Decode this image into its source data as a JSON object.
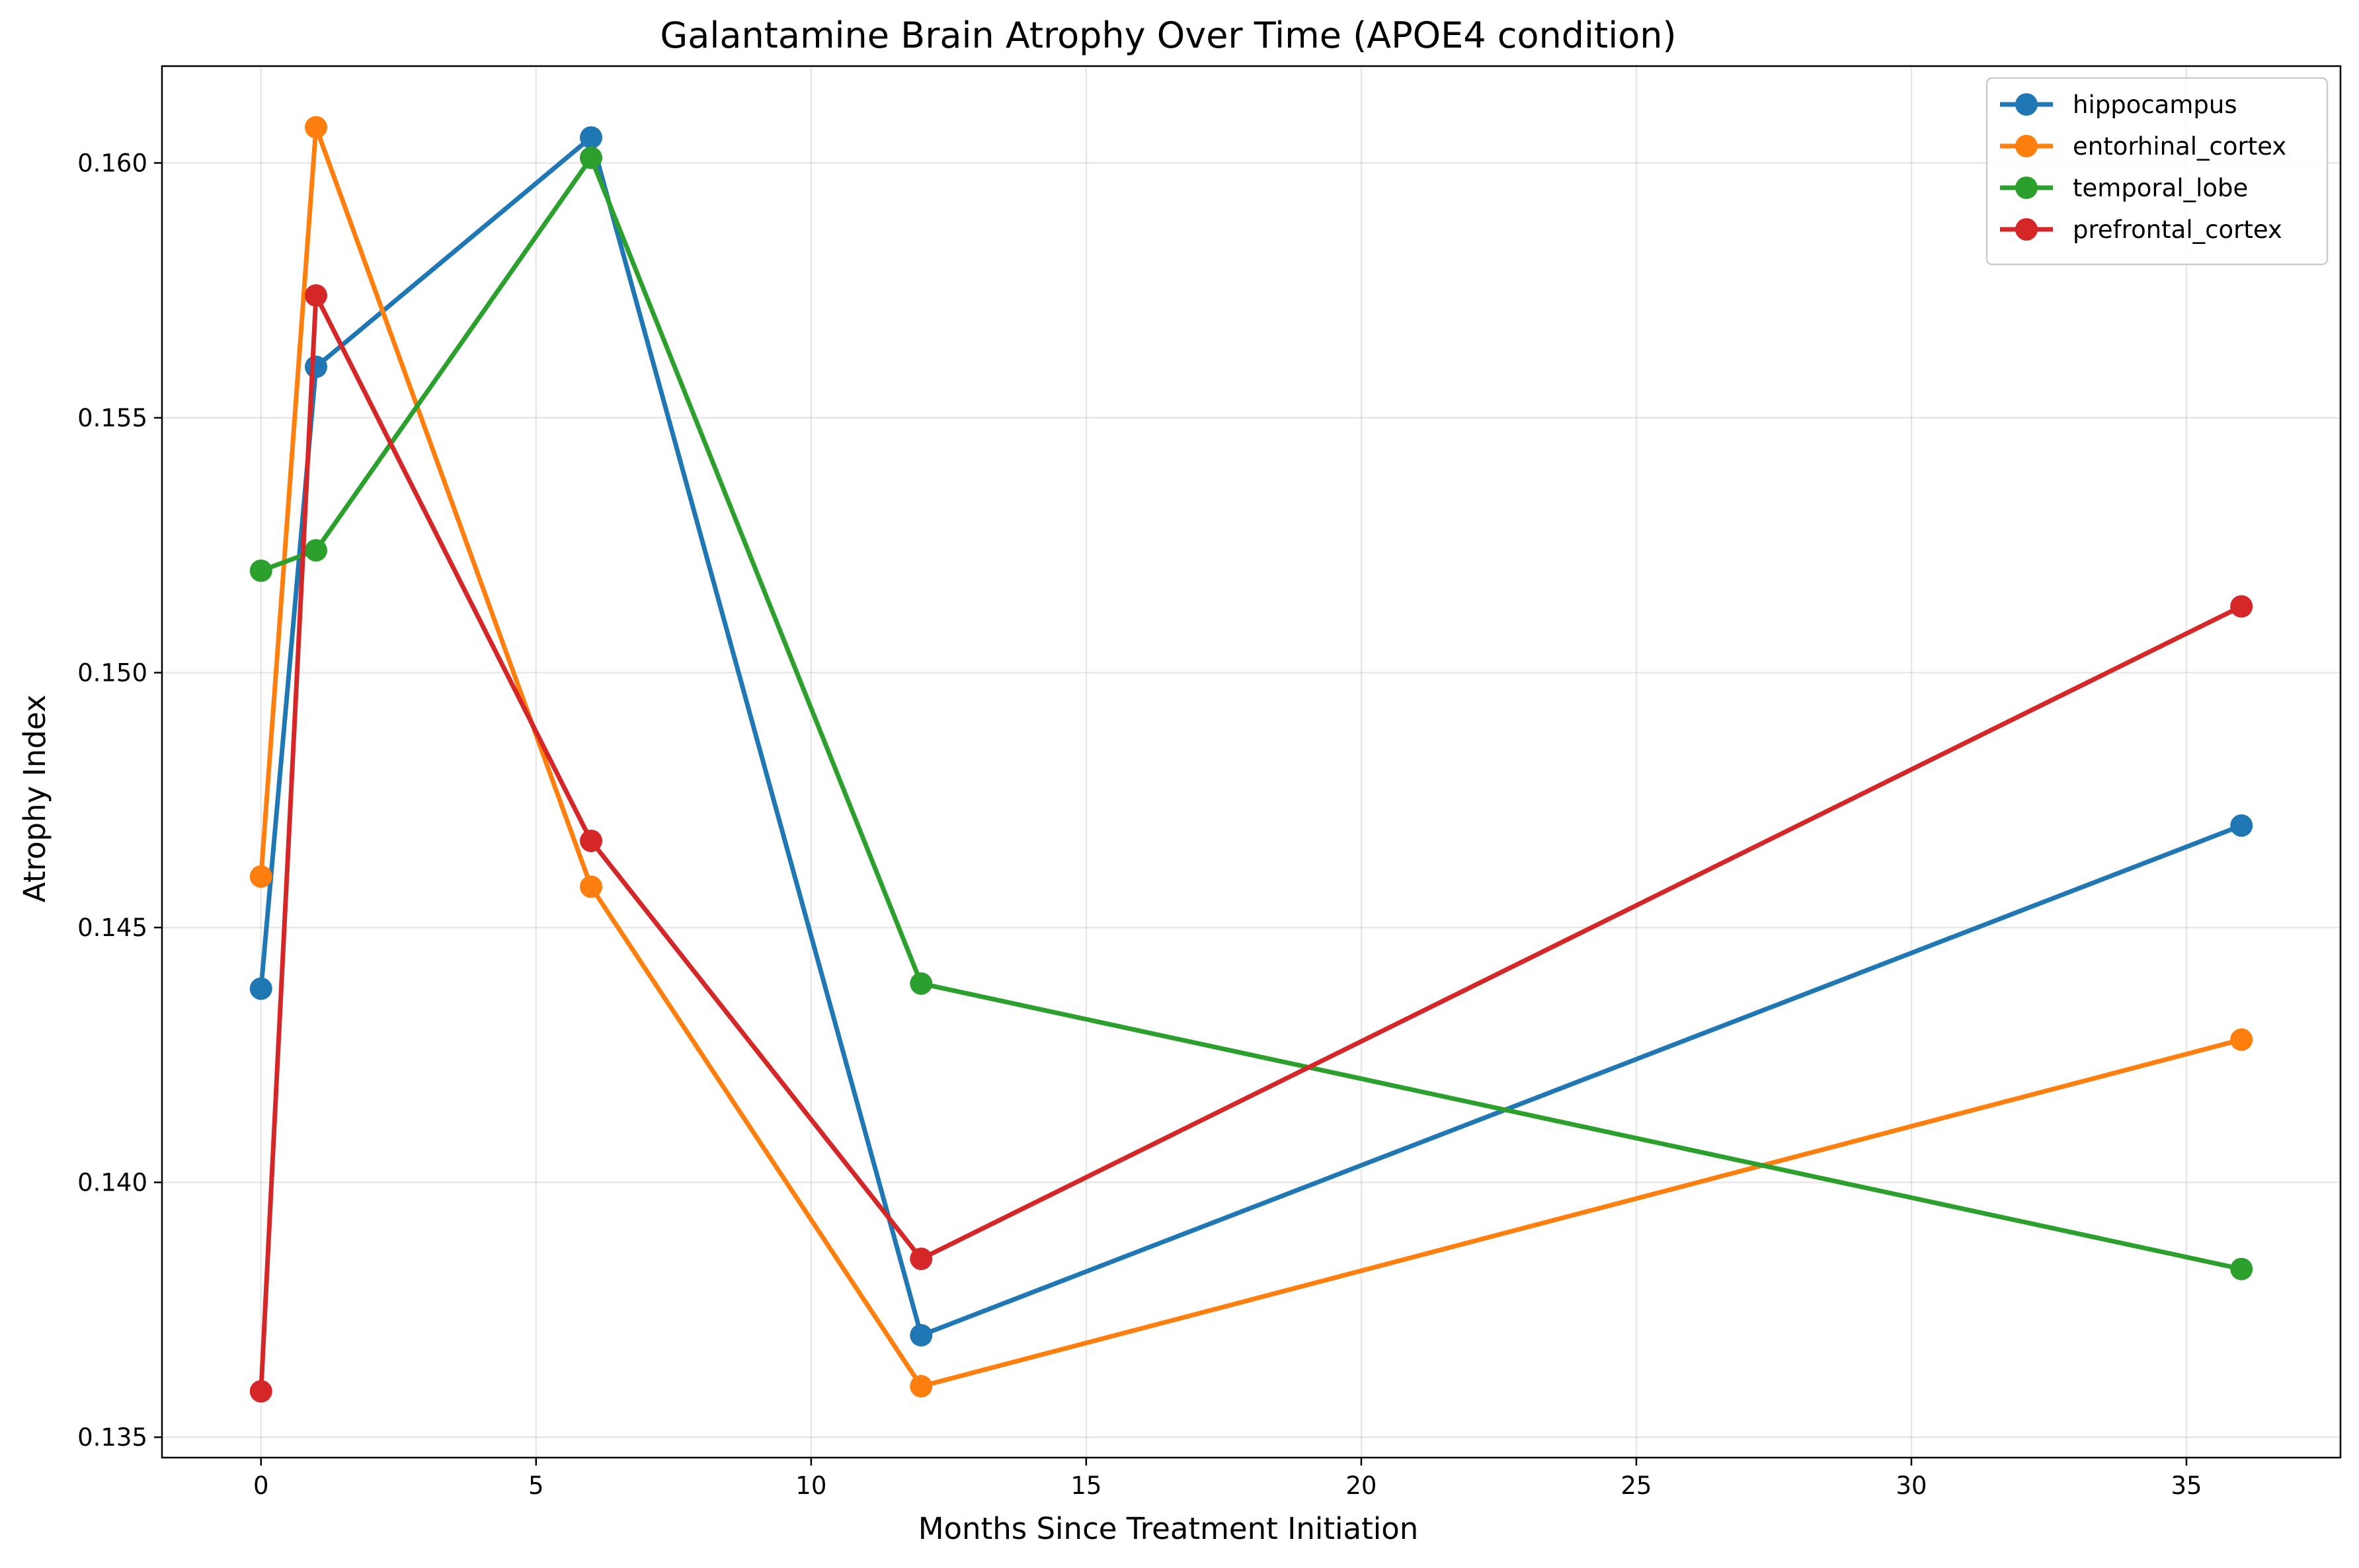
{
  "chart_data": {
    "type": "line",
    "title": "Galantamine Brain Atrophy Over Time (APOE4 condition)",
    "xlabel": "Months Since Treatment Initiation",
    "ylabel": "Atrophy Index",
    "xlim": [
      -1.8,
      37.8
    ],
    "ylim": [
      0.1346,
      0.1619
    ],
    "xticks": [
      0,
      5,
      10,
      15,
      20,
      25,
      30,
      35
    ],
    "xtick_labels": [
      "0",
      "5",
      "10",
      "15",
      "20",
      "25",
      "30",
      "35"
    ],
    "yticks": [
      0.135,
      0.14,
      0.145,
      0.15,
      0.155,
      0.16
    ],
    "ytick_labels": [
      "0.135",
      "0.140",
      "0.145",
      "0.150",
      "0.155",
      "0.160"
    ],
    "grid": true,
    "legend_position": "top-right",
    "x": [
      0,
      1,
      6,
      12,
      36
    ],
    "series": [
      {
        "name": "hippocampus",
        "color": "#1f77b4",
        "values": [
          0.1438,
          0.156,
          0.1605,
          0.137,
          0.147
        ]
      },
      {
        "name": "entorhinal_cortex",
        "color": "#ff7f0e",
        "values": [
          0.146,
          0.1607,
          0.1458,
          0.136,
          0.1428
        ]
      },
      {
        "name": "temporal_lobe",
        "color": "#2ca02c",
        "values": [
          0.152,
          0.1524,
          0.1601,
          0.1439,
          0.1383
        ]
      },
      {
        "name": "prefrontal_cortex",
        "color": "#d62728",
        "values": [
          0.1359,
          0.1574,
          0.1467,
          0.1385,
          0.1513
        ]
      }
    ]
  }
}
